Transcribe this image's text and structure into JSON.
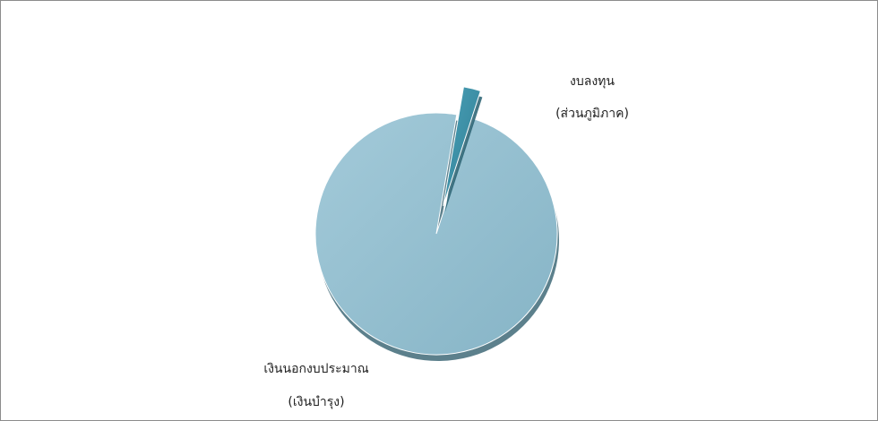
{
  "chart_data": {
    "type": "pie",
    "title": "",
    "legend": "none",
    "slices": [
      {
        "label_lines": [
          "เงินนอกงบประมาณ",
          "(เงินบำรุง)"
        ],
        "value": 97.7,
        "color": "#8ab8cb",
        "exploded": false
      },
      {
        "label_lines": [
          "งบลงทุน",
          "(ส่วนภูมิภาค)"
        ],
        "value": 2.3,
        "color": "#3a8ea6",
        "exploded": true
      }
    ]
  }
}
